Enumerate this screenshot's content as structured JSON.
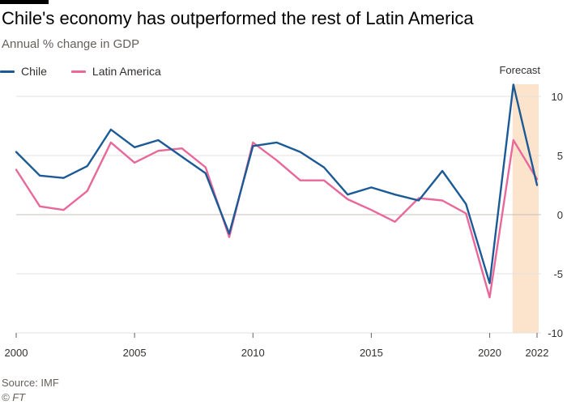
{
  "header": {
    "title": "Chile's economy has outperformed the rest of Latin America",
    "subtitle": "Annual % change in GDP"
  },
  "footer": {
    "source": "Source: IMF",
    "copyright": "© FT"
  },
  "colors": {
    "chile": "#1c5a96",
    "latam": "#e8689a",
    "forecast_band": "#fbe3cc",
    "grid": "#e6e1dc",
    "zero": "#c4bfba"
  },
  "chart_data": {
    "type": "line",
    "title": "Chile's economy has outperformed the rest of Latin America",
    "subtitle": "Annual % change in GDP",
    "xlabel": "",
    "ylabel": "",
    "x": [
      2000,
      2001,
      2002,
      2003,
      2004,
      2005,
      2006,
      2007,
      2008,
      2009,
      2010,
      2011,
      2012,
      2013,
      2014,
      2015,
      2016,
      2017,
      2018,
      2019,
      2020,
      2021,
      2022
    ],
    "series": [
      {
        "name": "Chile",
        "values": [
          5.3,
          3.3,
          3.1,
          4.1,
          7.2,
          5.7,
          6.3,
          4.9,
          3.5,
          -1.6,
          5.8,
          6.1,
          5.3,
          4.0,
          1.7,
          2.3,
          1.7,
          1.2,
          3.7,
          0.9,
          -5.8,
          11.0,
          2.5
        ]
      },
      {
        "name": "Latin America",
        "values": [
          3.8,
          0.7,
          0.4,
          2.0,
          6.1,
          4.4,
          5.4,
          5.6,
          4.0,
          -1.9,
          6.1,
          4.6,
          2.9,
          2.9,
          1.3,
          0.4,
          -0.6,
          1.4,
          1.2,
          0.1,
          -7.0,
          6.3,
          3.0
        ]
      }
    ],
    "xticks": [
      "2000",
      "2005",
      "2010",
      "2015",
      "2020",
      "2022"
    ],
    "xtick_values": [
      2000,
      2005,
      2010,
      2015,
      2020,
      2022
    ],
    "yticks": [
      "10",
      "5",
      "0",
      "-5",
      "-10"
    ],
    "ytick_values": [
      10,
      5,
      0,
      -5,
      -10
    ],
    "ylim": [
      -10,
      10
    ],
    "xlim": [
      2000,
      2022
    ],
    "forecast": {
      "label": "Forecast",
      "start": 2021,
      "end": 2022
    },
    "grid": true,
    "legend_placement": "top-left"
  }
}
